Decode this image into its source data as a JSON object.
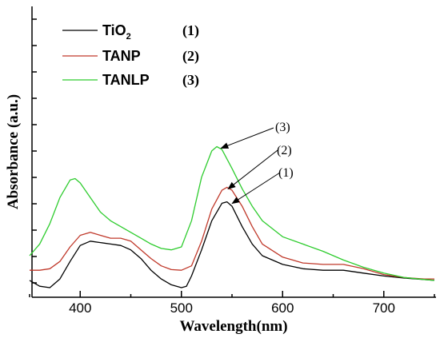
{
  "chart_data": {
    "type": "line",
    "xlabel": "Wavelength(nm)",
    "ylabel": "Absorbance (a.u.)",
    "xlim": [
      350,
      750
    ],
    "ylim": [
      0,
      10
    ],
    "x_ticks": [
      400,
      500,
      600,
      700
    ],
    "y_ticks_labeled": false,
    "grid": false,
    "legend_position": "top-left",
    "series": [
      {
        "name_main": "TiO",
        "name_sub": "2",
        "index_label": "(1)",
        "color": "#000000",
        "x": [
          350,
          360,
          370,
          380,
          390,
          400,
          410,
          420,
          430,
          440,
          450,
          460,
          470,
          480,
          490,
          500,
          505,
          510,
          520,
          530,
          540,
          545,
          550,
          560,
          570,
          580,
          600,
          620,
          640,
          660,
          680,
          700,
          720,
          740,
          750
        ],
        "y": [
          0.25,
          0.05,
          0.0,
          0.3,
          0.9,
          1.45,
          1.6,
          1.55,
          1.5,
          1.45,
          1.3,
          1.0,
          0.6,
          0.3,
          0.1,
          0.0,
          0.05,
          0.4,
          1.3,
          2.3,
          2.9,
          2.95,
          2.8,
          2.1,
          1.5,
          1.1,
          0.8,
          0.65,
          0.6,
          0.6,
          0.5,
          0.4,
          0.33,
          0.28,
          0.25
        ]
      },
      {
        "name_main": "TANP",
        "name_sub": "",
        "index_label": "(2)",
        "color": "#c0392b",
        "x": [
          350,
          360,
          370,
          380,
          390,
          400,
          410,
          420,
          430,
          440,
          450,
          460,
          470,
          480,
          490,
          500,
          510,
          520,
          530,
          540,
          545,
          550,
          560,
          570,
          580,
          600,
          620,
          640,
          660,
          680,
          700,
          720,
          740,
          750
        ],
        "y": [
          0.6,
          0.6,
          0.65,
          0.9,
          1.4,
          1.8,
          1.9,
          1.8,
          1.7,
          1.7,
          1.6,
          1.3,
          1.0,
          0.75,
          0.62,
          0.6,
          0.75,
          1.6,
          2.7,
          3.35,
          3.45,
          3.35,
          2.8,
          2.1,
          1.5,
          1.05,
          0.85,
          0.8,
          0.8,
          0.65,
          0.45,
          0.35,
          0.3,
          0.3
        ]
      },
      {
        "name_main": "TANLP",
        "name_sub": "",
        "index_label": "(3)",
        "color": "#2ecc2e",
        "x": [
          350,
          360,
          370,
          380,
          390,
          395,
          400,
          410,
          420,
          430,
          440,
          450,
          460,
          470,
          480,
          490,
          500,
          510,
          520,
          530,
          535,
          540,
          550,
          560,
          570,
          580,
          600,
          620,
          640,
          660,
          680,
          700,
          720,
          740,
          750
        ],
        "y": [
          1.1,
          1.5,
          2.2,
          3.1,
          3.7,
          3.75,
          3.6,
          3.1,
          2.6,
          2.3,
          2.1,
          1.9,
          1.7,
          1.5,
          1.35,
          1.3,
          1.4,
          2.3,
          3.8,
          4.7,
          4.85,
          4.75,
          4.1,
          3.4,
          2.8,
          2.3,
          1.75,
          1.5,
          1.25,
          0.95,
          0.7,
          0.5,
          0.35,
          0.28,
          0.25
        ]
      }
    ],
    "annotations": [
      {
        "label": "(3)",
        "x": 536,
        "y": 4.85,
        "series": "TANLP"
      },
      {
        "label": "(2)",
        "x": 543,
        "y": 3.45,
        "series": "TANP"
      },
      {
        "label": "(1)",
        "x": 547,
        "y": 2.95,
        "series": "TiO2"
      }
    ]
  }
}
